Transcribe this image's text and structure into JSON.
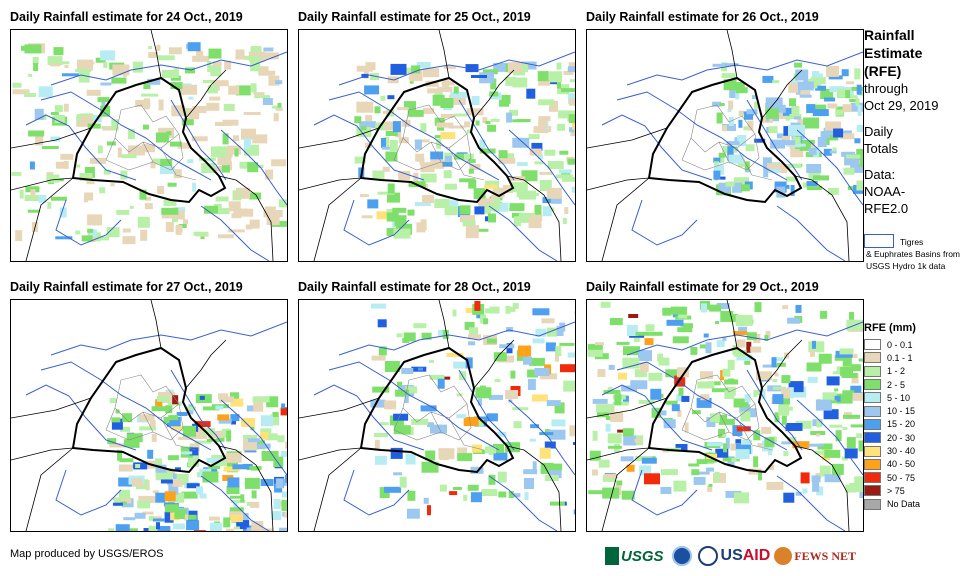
{
  "panels": [
    {
      "title": "Daily Rainfall estimate for 24 Oct., 2019"
    },
    {
      "title": "Daily Rainfall estimate for 25 Oct., 2019"
    },
    {
      "title": "Daily Rainfall estimate for 26 Oct., 2019"
    },
    {
      "title": "Daily Rainfall estimate for 27 Oct., 2019"
    },
    {
      "title": "Daily Rainfall estimate for 28 Oct., 2019"
    },
    {
      "title": "Daily Rainfall estimate for 29 Oct., 2019"
    }
  ],
  "sidebar": {
    "line1": "Rainfall",
    "line2": "Estimate",
    "line3": "(RFE)",
    "line4": "through",
    "line5": "Oct 29, 2019",
    "line6": "Daily",
    "line7": "Totals",
    "line8": "Data:",
    "line9": "NOAA-",
    "line10": "RFE2.0"
  },
  "basin_key": {
    "line1": "Tigres",
    "line2": "& Euphrates Basins from USGS Hydro 1k data"
  },
  "legend": {
    "title": "RFE (mm)",
    "items": [
      {
        "label": "0 - 0.1",
        "color": "#ffffff"
      },
      {
        "label": "0.1 - 1",
        "color": "#e8d6b8"
      },
      {
        "label": "1 - 2",
        "color": "#b8f0a8"
      },
      {
        "label": "2 - 5",
        "color": "#7ee06a"
      },
      {
        "label": "5 - 10",
        "color": "#b6ecf2"
      },
      {
        "label": "10 - 15",
        "color": "#9cc8f0"
      },
      {
        "label": "15 - 20",
        "color": "#4d9ff0"
      },
      {
        "label": "20 - 30",
        "color": "#1f5fe0"
      },
      {
        "label": "30 - 40",
        "color": "#ffe27a"
      },
      {
        "label": "40 - 50",
        "color": "#ffa21a"
      },
      {
        "label": "50 - 75",
        "color": "#f02a0a"
      },
      {
        "label": "> 75",
        "color": "#9c1a14"
      },
      {
        "label": "No Data",
        "color": "#a8a8a8"
      }
    ]
  },
  "credit": "Map produced by USGS/EROS",
  "logos": {
    "usgs": "USGS",
    "usaid_us": "US",
    "usaid_aid": "AID",
    "fews": "FEWS NET"
  }
}
